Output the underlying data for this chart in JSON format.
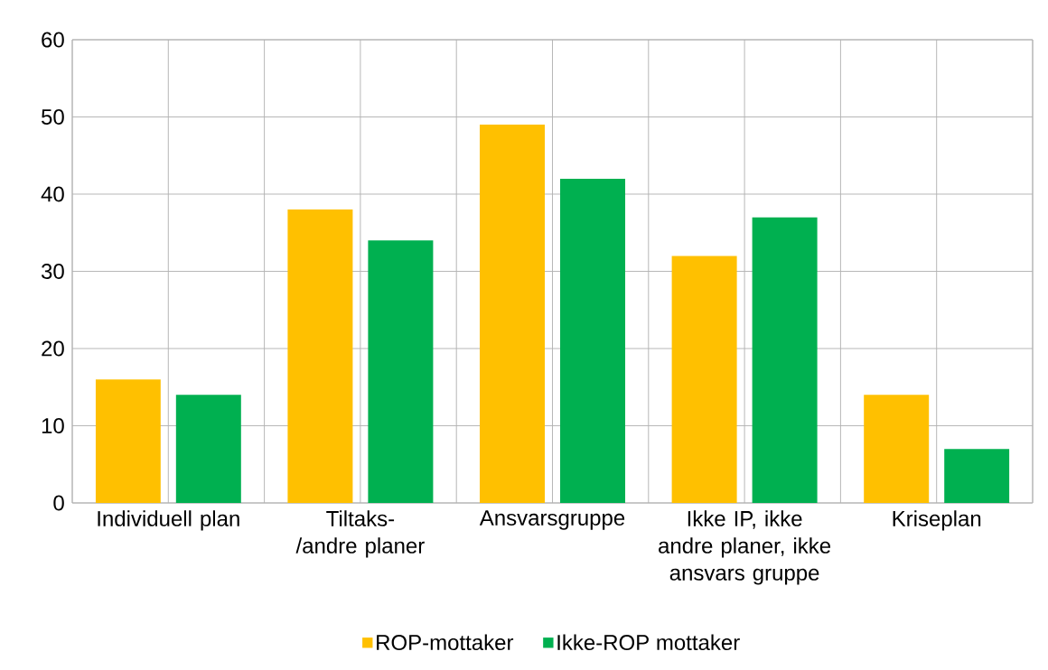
{
  "chart_data": {
    "type": "bar",
    "categories": [
      "Individuell plan",
      "Tiltaks-/andre planer",
      "Ansvarsgruppe",
      "Ikke IP, ikke andre planer, ikke ansvars gruppe",
      "Kriseplan"
    ],
    "series": [
      {
        "name": "ROP-mottaker",
        "color": "#ffc000",
        "values": [
          16,
          38,
          49,
          32,
          14
        ]
      },
      {
        "name": "Ikke-ROP mottaker",
        "color": "#00b050",
        "values": [
          14,
          34,
          42,
          37,
          7
        ]
      }
    ],
    "ylim": [
      0,
      60
    ],
    "yticks": [
      0,
      10,
      20,
      30,
      40,
      50,
      60
    ],
    "grid": true,
    "legend": "bottom"
  }
}
